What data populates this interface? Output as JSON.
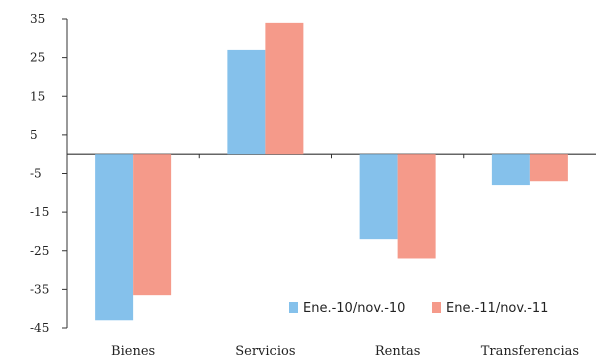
{
  "chart_data": {
    "type": "bar",
    "categories": [
      "Bienes",
      "Servicios",
      "Rentas",
      "Transferencias"
    ],
    "series": [
      {
        "name": "Ene.-10/nov.-10",
        "color": "#85C1EB",
        "values": [
          -43,
          27,
          -22,
          -8
        ]
      },
      {
        "name": "Ene.-11/nov.-11",
        "color": "#F59A8A",
        "values": [
          -36.5,
          34,
          -27,
          -7
        ]
      }
    ],
    "yticks": [
      35,
      25,
      15,
      5,
      -5,
      -15,
      -25,
      -35,
      -45
    ],
    "ylim": [
      -45,
      35
    ],
    "grid": false,
    "legend_position": "bottom-right"
  }
}
